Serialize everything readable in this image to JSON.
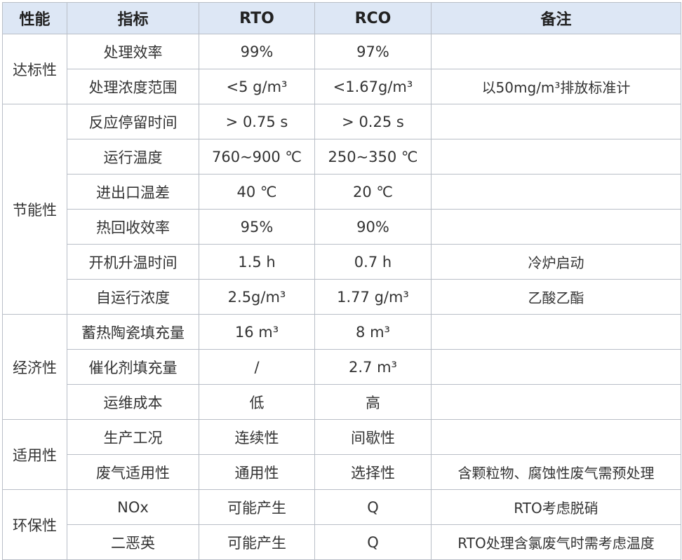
{
  "header": {
    "performance": "性能",
    "indicator": "指标",
    "rto": "RTO",
    "rco": "RCO",
    "note": "备注"
  },
  "groups": [
    {
      "name": "达标性",
      "rows": [
        {
          "indicator": "处理效率",
          "rto": "99%",
          "rco": "97%",
          "note": ""
        },
        {
          "indicator": "处理浓度范围",
          "rto": "<5 g/m³",
          "rco": "<1.67g/m³",
          "note": "以50mg/m³排放标准计"
        }
      ]
    },
    {
      "name": "节能性",
      "rows": [
        {
          "indicator": "反应停留时间",
          "rto": "> 0.75 s",
          "rco": "> 0.25 s",
          "note": ""
        },
        {
          "indicator": "运行温度",
          "rto": "760~900 ℃",
          "rco": "250~350 ℃",
          "note": ""
        },
        {
          "indicator": "进出口温差",
          "rto": "40 ℃",
          "rco": "20 ℃",
          "note": ""
        },
        {
          "indicator": "热回收效率",
          "rto": "95%",
          "rco": "90%",
          "note": ""
        },
        {
          "indicator": "开机升温时间",
          "rto": "1.5 h",
          "rco": "0.7 h",
          "note": "冷炉启动"
        },
        {
          "indicator": "自运行浓度",
          "rto": "2.5g/m³",
          "rco": "1.77 g/m³",
          "note": "乙酸乙酯"
        }
      ]
    },
    {
      "name": "经济性",
      "rows": [
        {
          "indicator": "蓄热陶瓷填充量",
          "rto": "16 m³",
          "rco": "8 m³",
          "note": ""
        },
        {
          "indicator": "催化剂填充量",
          "rto": "/",
          "rco": "2.7 m³",
          "note": ""
        },
        {
          "indicator": "运维成本",
          "rto": "低",
          "rco": "高",
          "note": ""
        }
      ]
    },
    {
      "name": "适用性",
      "rows": [
        {
          "indicator": "生产工况",
          "rto": "连续性",
          "rco": "间歇性",
          "note": ""
        },
        {
          "indicator": "废气适用性",
          "rto": "通用性",
          "rco": "选择性",
          "note": "含颗粒物、腐蚀性废气需预处理"
        }
      ]
    },
    {
      "name": "环保性",
      "rows": [
        {
          "indicator": "NOx",
          "rto": "可能产生",
          "rco": "Q",
          "note": "RTO考虑脱硝"
        },
        {
          "indicator": "二恶英",
          "rto": "可能产生",
          "rco": "Q",
          "note": "RTO处理含氯废气时需考虑温度"
        }
      ]
    }
  ],
  "colors": {
    "header_bg": "#dde7f5",
    "border": "#b9bec7"
  }
}
